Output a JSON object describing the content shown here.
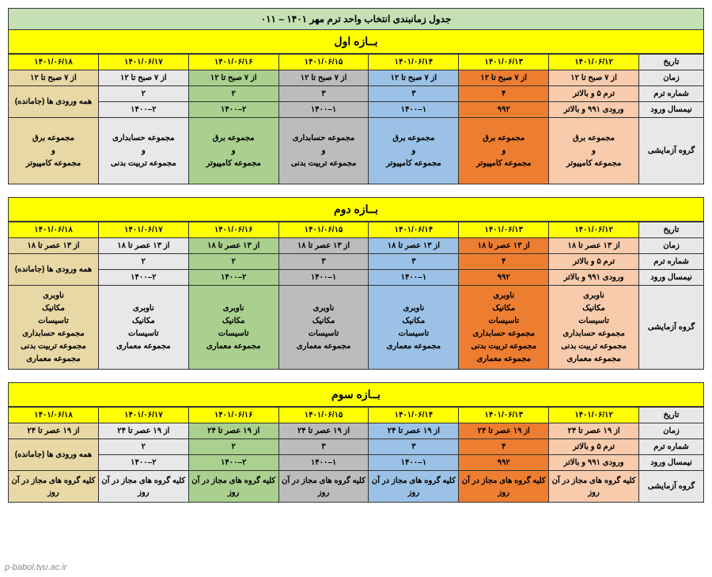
{
  "title": "جدول زمانبندی انتخاب واحد ترم مهر ۱۴۰۱ – ۰۱۱",
  "watermark": "p-babol.tvu.ac.ir",
  "row_labels": {
    "date": "تاریخ",
    "time": "زمان",
    "term_no": "شماره ترم",
    "entry_sem": "نیمسال ورود",
    "group": "گروه آزمایشی"
  },
  "columns": {
    "colors": [
      "c0",
      "c1",
      "c2",
      "c3",
      "c4",
      "c5",
      "c6"
    ],
    "dates": [
      "۱۴۰۱/۰۶/۱۲",
      "۱۴۰۱/۰۶/۱۳",
      "۱۴۰۱/۰۶/۱۴",
      "۱۴۰۱/۰۶/۱۵",
      "۱۴۰۱/۰۶/۱۶",
      "۱۴۰۱/۰۶/۱۷",
      "۱۴۰۱/۰۶/۱۸"
    ],
    "term_no": [
      "ترم ۵ و بالاتر",
      "۴",
      "۳",
      "۳",
      "۲",
      "۲",
      ""
    ],
    "term_no_merge_last": "همه ورودی ها (جامانده)",
    "entry_sem": [
      "ورودی ۹۹۱ و بالاتر",
      "۹۹۲",
      "۱–۱۴۰۰",
      "۱–۱۴۰۰",
      "۲–۱۴۰۰",
      "۲–۱۴۰۰",
      ""
    ]
  },
  "sections": [
    {
      "header": "بــازه اول",
      "time_label": "از ۷ صبح تا ۱۲",
      "group_type": "tall",
      "groups": [
        [
          "مجموعه برق",
          "و",
          "مجموعه کامپیوتر"
        ],
        [
          "مجموعه برق",
          "و",
          "مجموعه کامپیوتر"
        ],
        [
          "مجموعه برق",
          "و",
          "مجموعه کامپیوتر"
        ],
        [
          "مجموعه حسابداری",
          "و",
          "مجموعه تربیت بدنی"
        ],
        [
          "مجموعه برق",
          "و",
          "مجموعه کامپیوتر"
        ],
        [
          "مجموعه حسابداری",
          "و",
          "مجموعه تربیت بدنی"
        ],
        [
          "مجموعه برق",
          "و",
          "مجموعه کامپیوتر"
        ]
      ]
    },
    {
      "header": "بــازه دوم",
      "time_label": "از ۱۳ عصر تا ۱۸",
      "group_type": "multiline",
      "groups": [
        [
          "ناوبری",
          "مکانیک",
          "تاسیسات",
          "مجموعه حسابداری",
          "مجموعه تربیت بدنی",
          "مجموعه معماری"
        ],
        [
          "ناوبری",
          "مکانیک",
          "تاسیسات",
          "مجموعه حسابداری",
          "مجموعه تربیت بدنی",
          "مجموعه معماری"
        ],
        [
          "ناوبری",
          "مکانیک",
          "تاسیسات",
          "مجموعه معماری"
        ],
        [
          "ناوبری",
          "مکانیک",
          "تاسیسات",
          "مجموعه معماری"
        ],
        [
          "ناوبری",
          "مکانیک",
          "تاسیسات",
          "مجموعه معماری"
        ],
        [
          "ناوبری",
          "مکانیک",
          "تاسیسات",
          "مجموعه معماری"
        ],
        [
          "ناوبری",
          "مکانیک",
          "تاسیسات",
          "مجموعه حسابداری",
          "مجموعه تربیت بدنی",
          "مجموعه معماری"
        ]
      ]
    },
    {
      "header": "بــازه سوم",
      "time_label": "از ۱۹ عصر تا ۲۴",
      "group_type": "short",
      "groups_single": "کلیه گروه های مجاز در آن روز"
    }
  ],
  "style": {
    "colors": {
      "c0": "#f8cbad",
      "c1": "#ed7d31",
      "c2": "#9bc2e6",
      "c3": "#bcbcbc",
      "c4": "#a9d08e",
      "c5": "#e8e8e8",
      "c6": "#e8d8a6",
      "header": "#ffff00",
      "title_bg": "#c5e0b4",
      "border": "#333333"
    },
    "font_size_body": 10,
    "font_size_header": 14,
    "font_size_title": 12
  }
}
